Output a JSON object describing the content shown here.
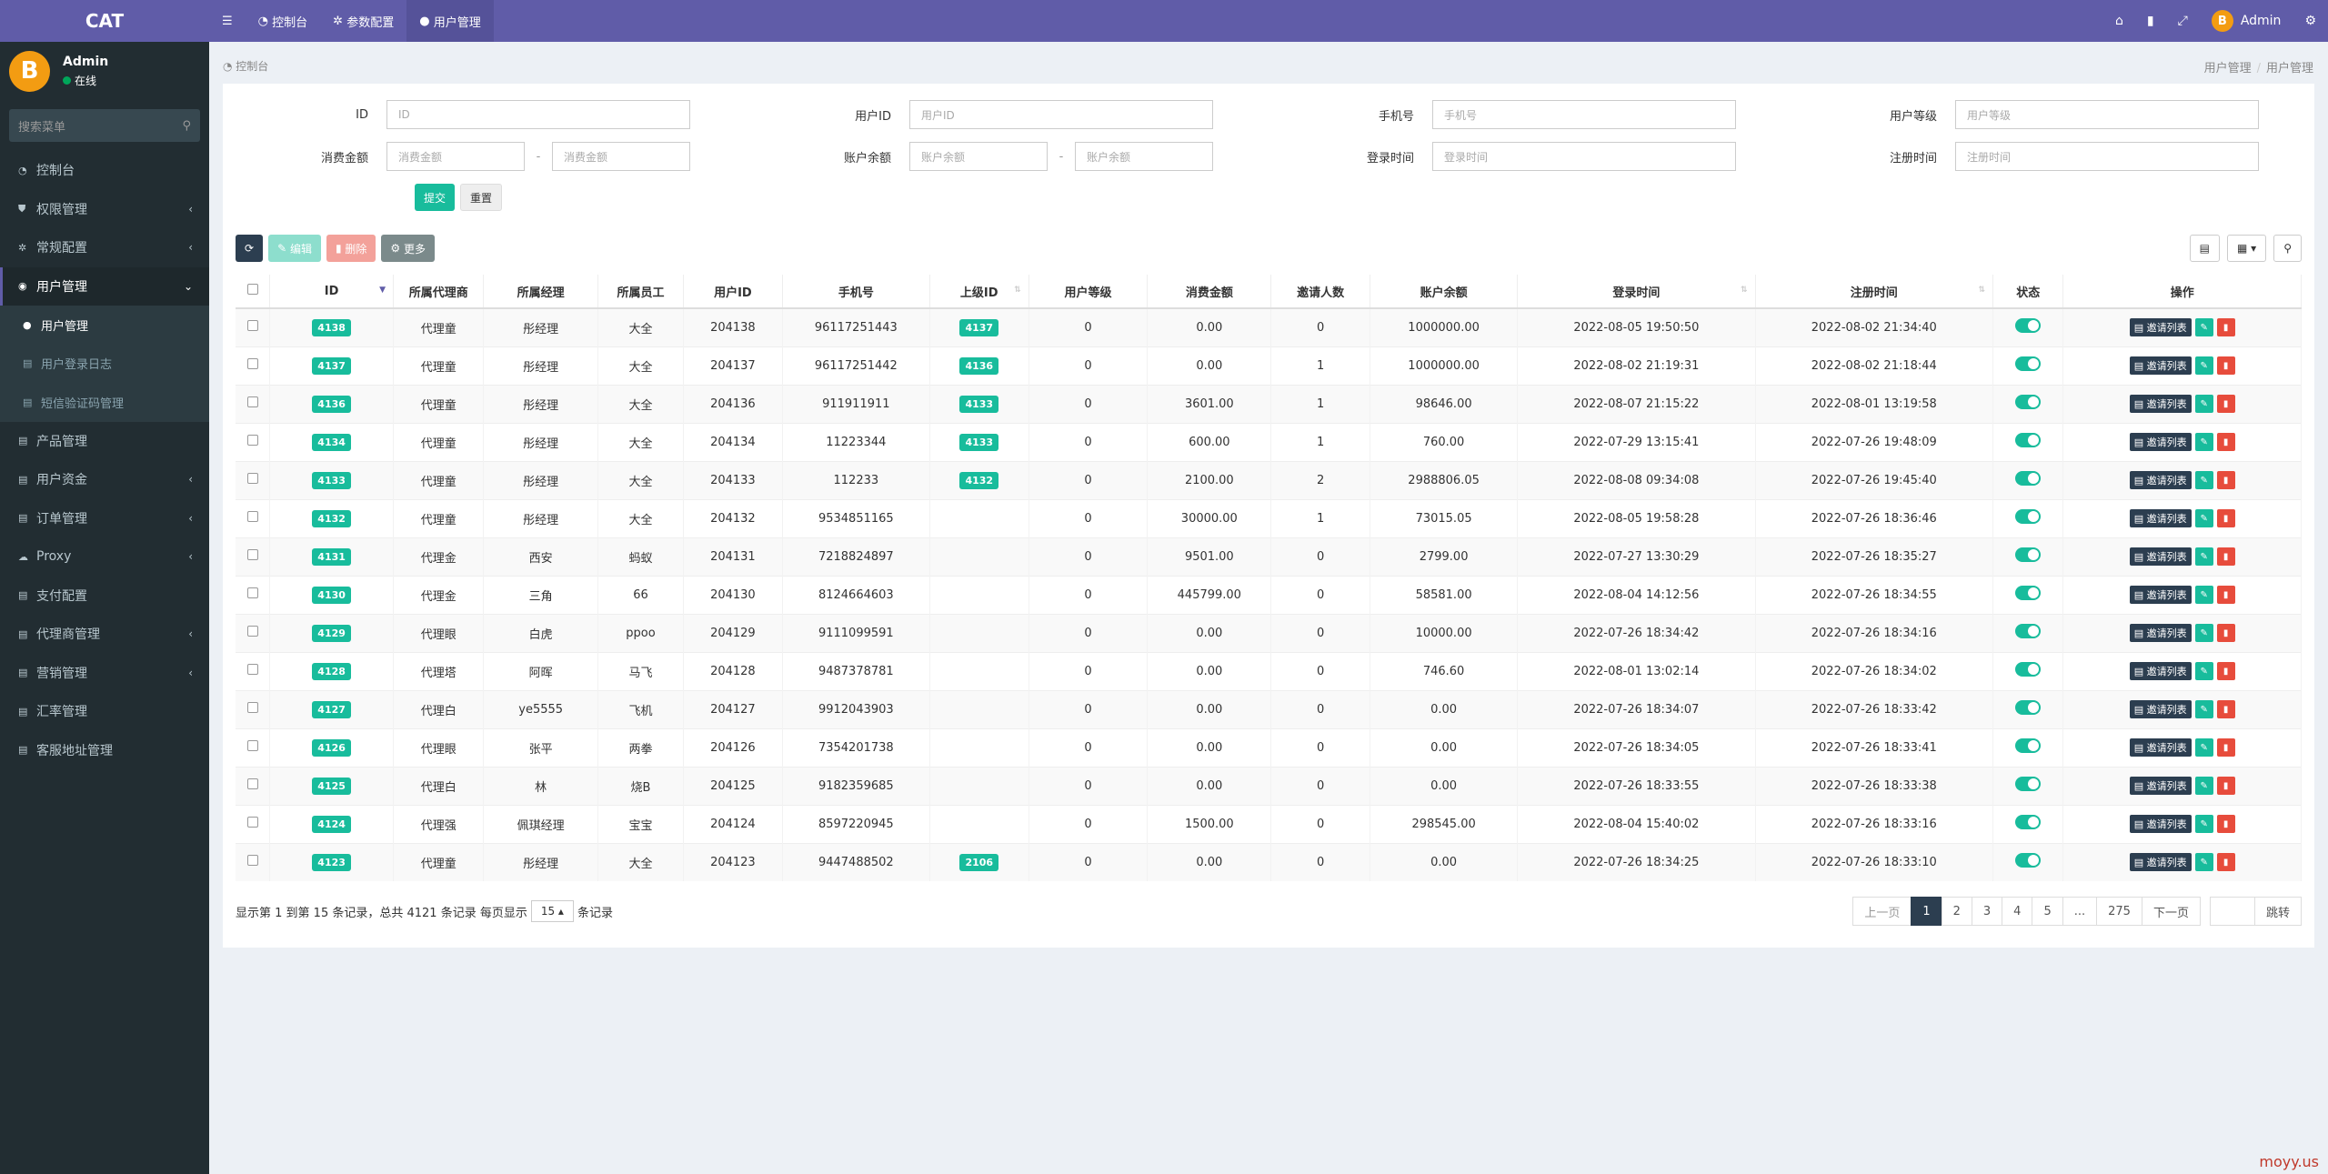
{
  "app": {
    "logo": "CAT",
    "brand_color": "#605ca8"
  },
  "user": {
    "avatar_glyph": "B",
    "name": "Admin",
    "status": "在线"
  },
  "sidebar": {
    "search_placeholder": "搜索菜单",
    "items": [
      {
        "label": "控制台",
        "icon": "dashboard-icon",
        "arrow": ""
      },
      {
        "label": "权限管理",
        "icon": "shield-icon",
        "arrow": "‹"
      },
      {
        "label": "常规配置",
        "icon": "cogs-icon",
        "arrow": "‹"
      },
      {
        "label": "用户管理",
        "icon": "user-circle-icon",
        "arrow": "⌄"
      },
      {
        "label": "用户管理",
        "icon": "user-icon",
        "arrow": ""
      },
      {
        "label": "用户登录日志",
        "icon": "list-icon",
        "arrow": ""
      },
      {
        "label": "短信验证码管理",
        "icon": "list-icon",
        "arrow": ""
      },
      {
        "label": "产品管理",
        "icon": "list-icon",
        "arrow": ""
      },
      {
        "label": "用户资金",
        "icon": "list-icon",
        "arrow": "‹"
      },
      {
        "label": "订单管理",
        "icon": "list-icon",
        "arrow": "‹"
      },
      {
        "label": "Proxy",
        "icon": "cloud-icon",
        "arrow": "‹"
      },
      {
        "label": "支付配置",
        "icon": "list-icon",
        "arrow": ""
      },
      {
        "label": "代理商管理",
        "icon": "list-icon",
        "arrow": "‹"
      },
      {
        "label": "营销管理",
        "icon": "list-icon",
        "arrow": "‹"
      },
      {
        "label": "汇率管理",
        "icon": "list-icon",
        "arrow": ""
      },
      {
        "label": "客服地址管理",
        "icon": "list-icon",
        "arrow": ""
      }
    ]
  },
  "topbar": {
    "tabs": [
      {
        "label": "控制台",
        "icon": "dashboard-icon"
      },
      {
        "label": "参数配置",
        "icon": "gear-icon"
      },
      {
        "label": "用户管理",
        "icon": "user-icon"
      }
    ],
    "admin_label": "Admin"
  },
  "breadcrumb": {
    "left": "控制台",
    "right_1": "用户管理",
    "right_2": "用户管理"
  },
  "filters": {
    "id_label": "ID",
    "id_ph": "ID",
    "uid_label": "用户ID",
    "uid_ph": "用户ID",
    "phone_label": "手机号",
    "phone_ph": "手机号",
    "level_label": "用户等级",
    "level_ph": "用户等级",
    "spend_label": "消费金额",
    "spend_ph": "消费金额",
    "balance_label": "账户余额",
    "balance_ph": "账户余额",
    "login_label": "登录时间",
    "login_ph": "登录时间",
    "reg_label": "注册时间",
    "reg_ph": "注册时间",
    "dash": "-",
    "submit": "提交",
    "reset": "重置"
  },
  "toolbar": {
    "refresh": "⟳",
    "edit": "编辑",
    "delete": "删除",
    "more": "更多"
  },
  "table": {
    "columns": [
      "ID",
      "所属代理商",
      "所属经理",
      "所属员工",
      "用户ID",
      "手机号",
      "上级ID",
      "用户等级",
      "消费金额",
      "邀请人数",
      "账户余额",
      "登录时间",
      "注册时间",
      "状态",
      "操作"
    ],
    "invite_label": "邀请列表",
    "rows": [
      [
        "4138",
        "代理童",
        "彤经理",
        "大全",
        "204138",
        "96117251443",
        "4137",
        "0",
        "0.00",
        "0",
        "1000000.00",
        "2022-08-05 19:50:50",
        "2022-08-02 21:34:40"
      ],
      [
        "4137",
        "代理童",
        "彤经理",
        "大全",
        "204137",
        "96117251442",
        "4136",
        "0",
        "0.00",
        "1",
        "1000000.00",
        "2022-08-02 21:19:31",
        "2022-08-02 21:18:44"
      ],
      [
        "4136",
        "代理童",
        "彤经理",
        "大全",
        "204136",
        "911911911",
        "4133",
        "0",
        "3601.00",
        "1",
        "98646.00",
        "2022-08-07 21:15:22",
        "2022-08-01 13:19:58"
      ],
      [
        "4134",
        "代理童",
        "彤经理",
        "大全",
        "204134",
        "11223344",
        "4133",
        "0",
        "600.00",
        "1",
        "760.00",
        "2022-07-29 13:15:41",
        "2022-07-26 19:48:09"
      ],
      [
        "4133",
        "代理童",
        "彤经理",
        "大全",
        "204133",
        "112233",
        "4132",
        "0",
        "2100.00",
        "2",
        "2988806.05",
        "2022-08-08 09:34:08",
        "2022-07-26 19:45:40"
      ],
      [
        "4132",
        "代理童",
        "彤经理",
        "大全",
        "204132",
        "9534851165",
        "",
        "0",
        "30000.00",
        "1",
        "73015.05",
        "2022-08-05 19:58:28",
        "2022-07-26 18:36:46"
      ],
      [
        "4131",
        "代理金",
        "西安",
        "蚂蚁",
        "204131",
        "7218824897",
        "",
        "0",
        "9501.00",
        "0",
        "2799.00",
        "2022-07-27 13:30:29",
        "2022-07-26 18:35:27"
      ],
      [
        "4130",
        "代理金",
        "三角",
        "66",
        "204130",
        "8124664603",
        "",
        "0",
        "445799.00",
        "0",
        "58581.00",
        "2022-08-04 14:12:56",
        "2022-07-26 18:34:55"
      ],
      [
        "4129",
        "代理眼",
        "白虎",
        "ppoo",
        "204129",
        "9111099591",
        "",
        "0",
        "0.00",
        "0",
        "10000.00",
        "2022-07-26 18:34:42",
        "2022-07-26 18:34:16"
      ],
      [
        "4128",
        "代理塔",
        "阿晖",
        "马飞",
        "204128",
        "9487378781",
        "",
        "0",
        "0.00",
        "0",
        "746.60",
        "2022-08-01 13:02:14",
        "2022-07-26 18:34:02"
      ],
      [
        "4127",
        "代理白",
        "ye5555",
        "飞机",
        "204127",
        "9912043903",
        "",
        "0",
        "0.00",
        "0",
        "0.00",
        "2022-07-26 18:34:07",
        "2022-07-26 18:33:42"
      ],
      [
        "4126",
        "代理眼",
        "张平",
        "两拳",
        "204126",
        "7354201738",
        "",
        "0",
        "0.00",
        "0",
        "0.00",
        "2022-07-26 18:34:05",
        "2022-07-26 18:33:41"
      ],
      [
        "4125",
        "代理白",
        "林",
        "烧B",
        "204125",
        "9182359685",
        "",
        "0",
        "0.00",
        "0",
        "0.00",
        "2022-07-26 18:33:55",
        "2022-07-26 18:33:38"
      ],
      [
        "4124",
        "代理强",
        "佩琪经理",
        "宝宝",
        "204124",
        "8597220945",
        "",
        "0",
        "1500.00",
        "0",
        "298545.00",
        "2022-08-04 15:40:02",
        "2022-07-26 18:33:16"
      ],
      [
        "4123",
        "代理童",
        "彤经理",
        "大全",
        "204123",
        "9447488502",
        "2106",
        "0",
        "0.00",
        "0",
        "0.00",
        "2022-07-26 18:34:25",
        "2022-07-26 18:33:10"
      ]
    ]
  },
  "pagination": {
    "info_prefix": "显示第 1 到第 15 条记录，总共 4121 条记录 每页显示",
    "page_size": "15 ▴",
    "info_suffix": "条记录",
    "prev": "上一页",
    "pages": [
      "1",
      "2",
      "3",
      "4",
      "5",
      "...",
      "275"
    ],
    "next": "下一页",
    "go": "跳转"
  },
  "watermark": "moyy.us"
}
